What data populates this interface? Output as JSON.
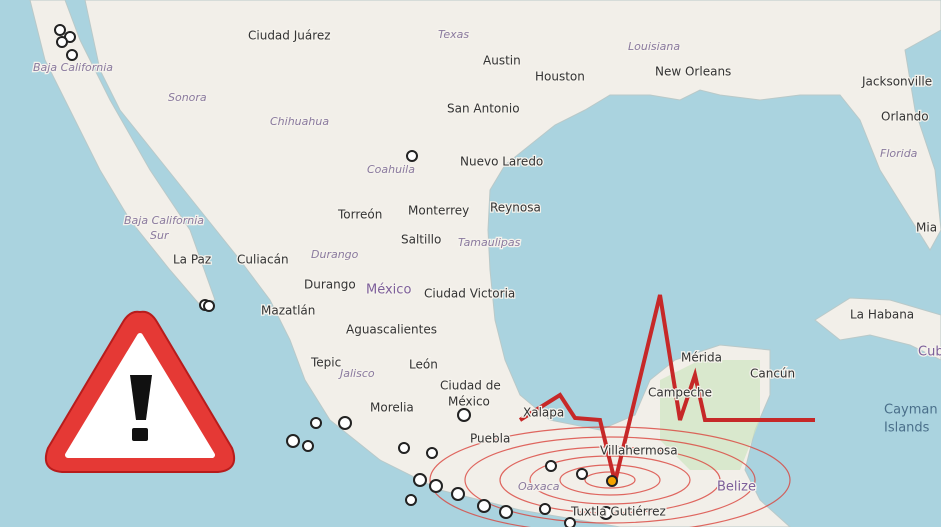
{
  "labels": [
    "Ciudad Juárez",
    "Texas",
    "Louisiana",
    "Austin",
    "Houston",
    "New Orleans",
    "Jacksonville",
    "Baja California",
    "Sonora",
    "Chihuahua",
    "San Antonio",
    "Orlando",
    "Florida",
    "Coahuila",
    "Nuevo Laredo",
    "Torreón",
    "Monterrey",
    "Reynosa",
    "Saltillo",
    "Tamaulipas",
    "Baja California",
    "Sur",
    "Mia",
    "La Paz",
    "Culiacán",
    "Durango",
    "Durango",
    "México",
    "Ciudad Victoria",
    "Mazatlán",
    "La Habana",
    "Aguascalientes",
    "Cub",
    "Mérida",
    "Tepic",
    "Jalisco",
    "León",
    "Cancún",
    "Ciudad de",
    "México",
    "Campeche",
    "Cayman",
    "Islands",
    "Morelia",
    "Xalapa",
    "Puebla",
    "Villahermosa",
    "Belize",
    "Oaxaca",
    "Tuxtla Gutiérrez"
  ]
}
